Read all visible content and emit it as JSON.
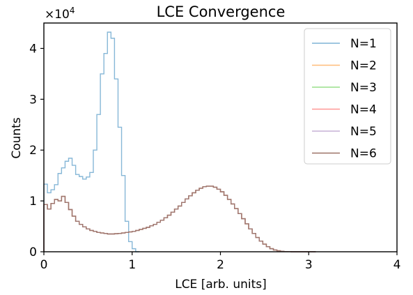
{
  "chart_data": {
    "type": "line",
    "title": "LCE Convergence",
    "xlabel": "LCE [arb. units]",
    "ylabel": "Counts",
    "xlim": [
      0,
      4
    ],
    "ylim": [
      0,
      45000
    ],
    "xticks": [
      "0",
      "1",
      "2",
      "3",
      "4"
    ],
    "yticks": [
      "0",
      "1",
      "2",
      "3",
      "4"
    ],
    "y_offset_text": "×10",
    "y_offset_exponent": "4",
    "grid": false,
    "legend_placement": "top-right",
    "bin_width": 0.04,
    "series": [
      {
        "name": "N=1",
        "color": "#7fb3d5",
        "x": [
          0.0,
          0.04,
          0.08,
          0.12,
          0.16,
          0.2,
          0.24,
          0.28,
          0.32,
          0.36,
          0.4,
          0.44,
          0.48,
          0.52,
          0.56,
          0.6,
          0.64,
          0.68,
          0.72,
          0.76,
          0.8,
          0.84,
          0.88,
          0.92,
          0.96,
          1.0,
          1.04
        ],
        "values": [
          13300,
          11600,
          12200,
          13200,
          15400,
          16500,
          17800,
          18400,
          17000,
          15200,
          14800,
          14300,
          14700,
          15600,
          20000,
          27000,
          35000,
          39000,
          43200,
          42000,
          34000,
          24500,
          15000,
          6000,
          2000,
          600,
          0
        ]
      },
      {
        "name": "N=2",
        "color": "#ffbb78",
        "x": [
          0.0,
          0.04,
          0.08,
          0.12,
          0.16,
          0.2,
          0.24,
          0.28,
          0.32,
          0.36,
          0.4,
          0.44,
          0.48,
          0.52,
          0.56,
          0.6,
          0.64,
          0.68,
          0.72,
          0.76,
          0.8,
          0.84,
          0.88,
          0.92,
          0.96,
          1.0,
          1.04,
          1.08,
          1.12,
          1.16,
          1.2,
          1.24,
          1.28,
          1.32,
          1.36,
          1.4,
          1.44,
          1.48,
          1.52,
          1.56,
          1.6,
          1.64,
          1.68,
          1.72,
          1.76,
          1.8,
          1.84,
          1.88,
          1.92,
          1.96,
          2.0,
          2.04,
          2.08,
          2.12,
          2.16,
          2.2,
          2.24,
          2.28,
          2.32,
          2.36,
          2.4,
          2.44,
          2.48,
          2.52,
          2.56,
          2.6,
          2.64,
          2.68,
          2.72,
          2.76,
          2.8,
          2.84,
          2.88,
          2.92,
          2.96,
          3.0,
          3.04
        ],
        "values": [
          9300,
          8400,
          9500,
          10300,
          10000,
          10900,
          9700,
          8300,
          7000,
          6000,
          5400,
          4900,
          4500,
          4200,
          4000,
          3800,
          3700,
          3600,
          3500,
          3500,
          3550,
          3600,
          3700,
          3800,
          3900,
          4000,
          4200,
          4400,
          4600,
          4800,
          5100,
          5400,
          5800,
          6200,
          6700,
          7200,
          7800,
          8400,
          9000,
          9700,
          10400,
          11000,
          11600,
          12100,
          12500,
          12800,
          12900,
          12900,
          12700,
          12300,
          11800,
          11100,
          10300,
          9400,
          8500,
          7500,
          6500,
          5500,
          4500,
          3600,
          2800,
          2100,
          1500,
          1000,
          600,
          350,
          200,
          100,
          50,
          20,
          0,
          0,
          0,
          0,
          0,
          0,
          0
        ]
      },
      {
        "name": "N=3",
        "color": "#98df8a",
        "x": [
          0.0,
          0.04,
          0.08,
          0.12,
          0.16,
          0.2,
          0.24,
          0.28,
          0.32,
          0.36,
          0.4,
          0.44,
          0.48,
          0.52,
          0.56,
          0.6,
          0.64,
          0.68,
          0.72,
          0.76,
          0.8,
          0.84,
          0.88,
          0.92,
          0.96,
          1.0,
          1.04,
          1.08,
          1.12,
          1.16,
          1.2,
          1.24,
          1.28,
          1.32,
          1.36,
          1.4,
          1.44,
          1.48,
          1.52,
          1.56,
          1.6,
          1.64,
          1.68,
          1.72,
          1.76,
          1.8,
          1.84,
          1.88,
          1.92,
          1.96,
          2.0,
          2.04,
          2.08,
          2.12,
          2.16,
          2.2,
          2.24,
          2.28,
          2.32,
          2.36,
          2.4,
          2.44,
          2.48,
          2.52,
          2.56,
          2.6,
          2.64,
          2.68,
          2.72,
          2.76,
          2.8,
          2.84,
          2.88,
          2.92,
          2.96,
          3.0,
          3.04
        ],
        "values": [
          9300,
          8400,
          9500,
          10300,
          10000,
          10900,
          9700,
          8300,
          7000,
          6000,
          5400,
          4900,
          4500,
          4200,
          4000,
          3800,
          3700,
          3600,
          3500,
          3500,
          3550,
          3600,
          3700,
          3800,
          3900,
          4000,
          4200,
          4400,
          4600,
          4800,
          5100,
          5400,
          5800,
          6200,
          6700,
          7200,
          7800,
          8400,
          9000,
          9700,
          10400,
          11000,
          11600,
          12100,
          12500,
          12800,
          12900,
          12900,
          12700,
          12300,
          11800,
          11100,
          10300,
          9400,
          8500,
          7500,
          6500,
          5500,
          4500,
          3600,
          2800,
          2100,
          1500,
          1000,
          600,
          350,
          200,
          100,
          50,
          20,
          0,
          0,
          0,
          0,
          0,
          0,
          0
        ]
      },
      {
        "name": "N=4",
        "color": "#ff9896",
        "x": [
          0.0,
          0.04,
          0.08,
          0.12,
          0.16,
          0.2,
          0.24,
          0.28,
          0.32,
          0.36,
          0.4,
          0.44,
          0.48,
          0.52,
          0.56,
          0.6,
          0.64,
          0.68,
          0.72,
          0.76,
          0.8,
          0.84,
          0.88,
          0.92,
          0.96,
          1.0,
          1.04,
          1.08,
          1.12,
          1.16,
          1.2,
          1.24,
          1.28,
          1.32,
          1.36,
          1.4,
          1.44,
          1.48,
          1.52,
          1.56,
          1.6,
          1.64,
          1.68,
          1.72,
          1.76,
          1.8,
          1.84,
          1.88,
          1.92,
          1.96,
          2.0,
          2.04,
          2.08,
          2.12,
          2.16,
          2.2,
          2.24,
          2.28,
          2.32,
          2.36,
          2.4,
          2.44,
          2.48,
          2.52,
          2.56,
          2.6,
          2.64,
          2.68,
          2.72,
          2.76,
          2.8,
          2.84,
          2.88,
          2.92,
          2.96,
          3.0,
          3.04
        ],
        "values": [
          9300,
          8400,
          9500,
          10300,
          10000,
          10900,
          9700,
          8300,
          7000,
          6000,
          5400,
          4900,
          4500,
          4200,
          4000,
          3800,
          3700,
          3600,
          3500,
          3500,
          3550,
          3600,
          3700,
          3800,
          3900,
          4000,
          4200,
          4400,
          4600,
          4800,
          5100,
          5400,
          5800,
          6200,
          6700,
          7200,
          7800,
          8400,
          9000,
          9700,
          10400,
          11000,
          11600,
          12100,
          12500,
          12800,
          12900,
          12900,
          12700,
          12300,
          11800,
          11100,
          10300,
          9400,
          8500,
          7500,
          6500,
          5500,
          4500,
          3600,
          2800,
          2100,
          1500,
          1000,
          600,
          350,
          200,
          100,
          50,
          20,
          0,
          0,
          0,
          0,
          0,
          0,
          0
        ]
      },
      {
        "name": "N=5",
        "color": "#c5b0d5",
        "x": [
          0.0,
          0.04,
          0.08,
          0.12,
          0.16,
          0.2,
          0.24,
          0.28,
          0.32,
          0.36,
          0.4,
          0.44,
          0.48,
          0.52,
          0.56,
          0.6,
          0.64,
          0.68,
          0.72,
          0.76,
          0.8,
          0.84,
          0.88,
          0.92,
          0.96,
          1.0,
          1.04,
          1.08,
          1.12,
          1.16,
          1.2,
          1.24,
          1.28,
          1.32,
          1.36,
          1.4,
          1.44,
          1.48,
          1.52,
          1.56,
          1.6,
          1.64,
          1.68,
          1.72,
          1.76,
          1.8,
          1.84,
          1.88,
          1.92,
          1.96,
          2.0,
          2.04,
          2.08,
          2.12,
          2.16,
          2.2,
          2.24,
          2.28,
          2.32,
          2.36,
          2.4,
          2.44,
          2.48,
          2.52,
          2.56,
          2.6,
          2.64,
          2.68,
          2.72,
          2.76,
          2.8,
          2.84,
          2.88,
          2.92,
          2.96,
          3.0,
          3.04
        ],
        "values": [
          9300,
          8400,
          9500,
          10300,
          10000,
          10900,
          9700,
          8300,
          7000,
          6000,
          5400,
          4900,
          4500,
          4200,
          4000,
          3800,
          3700,
          3600,
          3500,
          3500,
          3550,
          3600,
          3700,
          3800,
          3900,
          4000,
          4200,
          4400,
          4600,
          4800,
          5100,
          5400,
          5800,
          6200,
          6700,
          7200,
          7800,
          8400,
          9000,
          9700,
          10400,
          11000,
          11600,
          12100,
          12500,
          12800,
          12900,
          12900,
          12700,
          12300,
          11800,
          11100,
          10300,
          9400,
          8500,
          7500,
          6500,
          5500,
          4500,
          3600,
          2800,
          2100,
          1500,
          1000,
          600,
          350,
          200,
          100,
          50,
          20,
          0,
          0,
          0,
          0,
          0,
          0,
          0
        ]
      },
      {
        "name": "N=6",
        "color": "#9c7266",
        "x": [
          0.0,
          0.04,
          0.08,
          0.12,
          0.16,
          0.2,
          0.24,
          0.28,
          0.32,
          0.36,
          0.4,
          0.44,
          0.48,
          0.52,
          0.56,
          0.6,
          0.64,
          0.68,
          0.72,
          0.76,
          0.8,
          0.84,
          0.88,
          0.92,
          0.96,
          1.0,
          1.04,
          1.08,
          1.12,
          1.16,
          1.2,
          1.24,
          1.28,
          1.32,
          1.36,
          1.4,
          1.44,
          1.48,
          1.52,
          1.56,
          1.6,
          1.64,
          1.68,
          1.72,
          1.76,
          1.8,
          1.84,
          1.88,
          1.92,
          1.96,
          2.0,
          2.04,
          2.08,
          2.12,
          2.16,
          2.2,
          2.24,
          2.28,
          2.32,
          2.36,
          2.4,
          2.44,
          2.48,
          2.52,
          2.56,
          2.6,
          2.64,
          2.68,
          2.72,
          2.76,
          2.8,
          2.84,
          2.88,
          2.92,
          2.96,
          3.0,
          3.04
        ],
        "values": [
          9300,
          8400,
          9500,
          10300,
          10000,
          10900,
          9700,
          8300,
          7000,
          6000,
          5400,
          4900,
          4500,
          4200,
          4000,
          3800,
          3700,
          3600,
          3500,
          3500,
          3550,
          3600,
          3700,
          3800,
          3900,
          4000,
          4200,
          4400,
          4600,
          4800,
          5100,
          5400,
          5800,
          6200,
          6700,
          7200,
          7800,
          8400,
          9000,
          9700,
          10400,
          11000,
          11600,
          12100,
          12500,
          12800,
          12900,
          12900,
          12700,
          12300,
          11800,
          11100,
          10300,
          9400,
          8500,
          7500,
          6500,
          5500,
          4500,
          3600,
          2800,
          2100,
          1500,
          1000,
          600,
          350,
          200,
          100,
          50,
          20,
          0,
          0,
          0,
          0,
          0,
          0,
          0
        ]
      }
    ]
  }
}
